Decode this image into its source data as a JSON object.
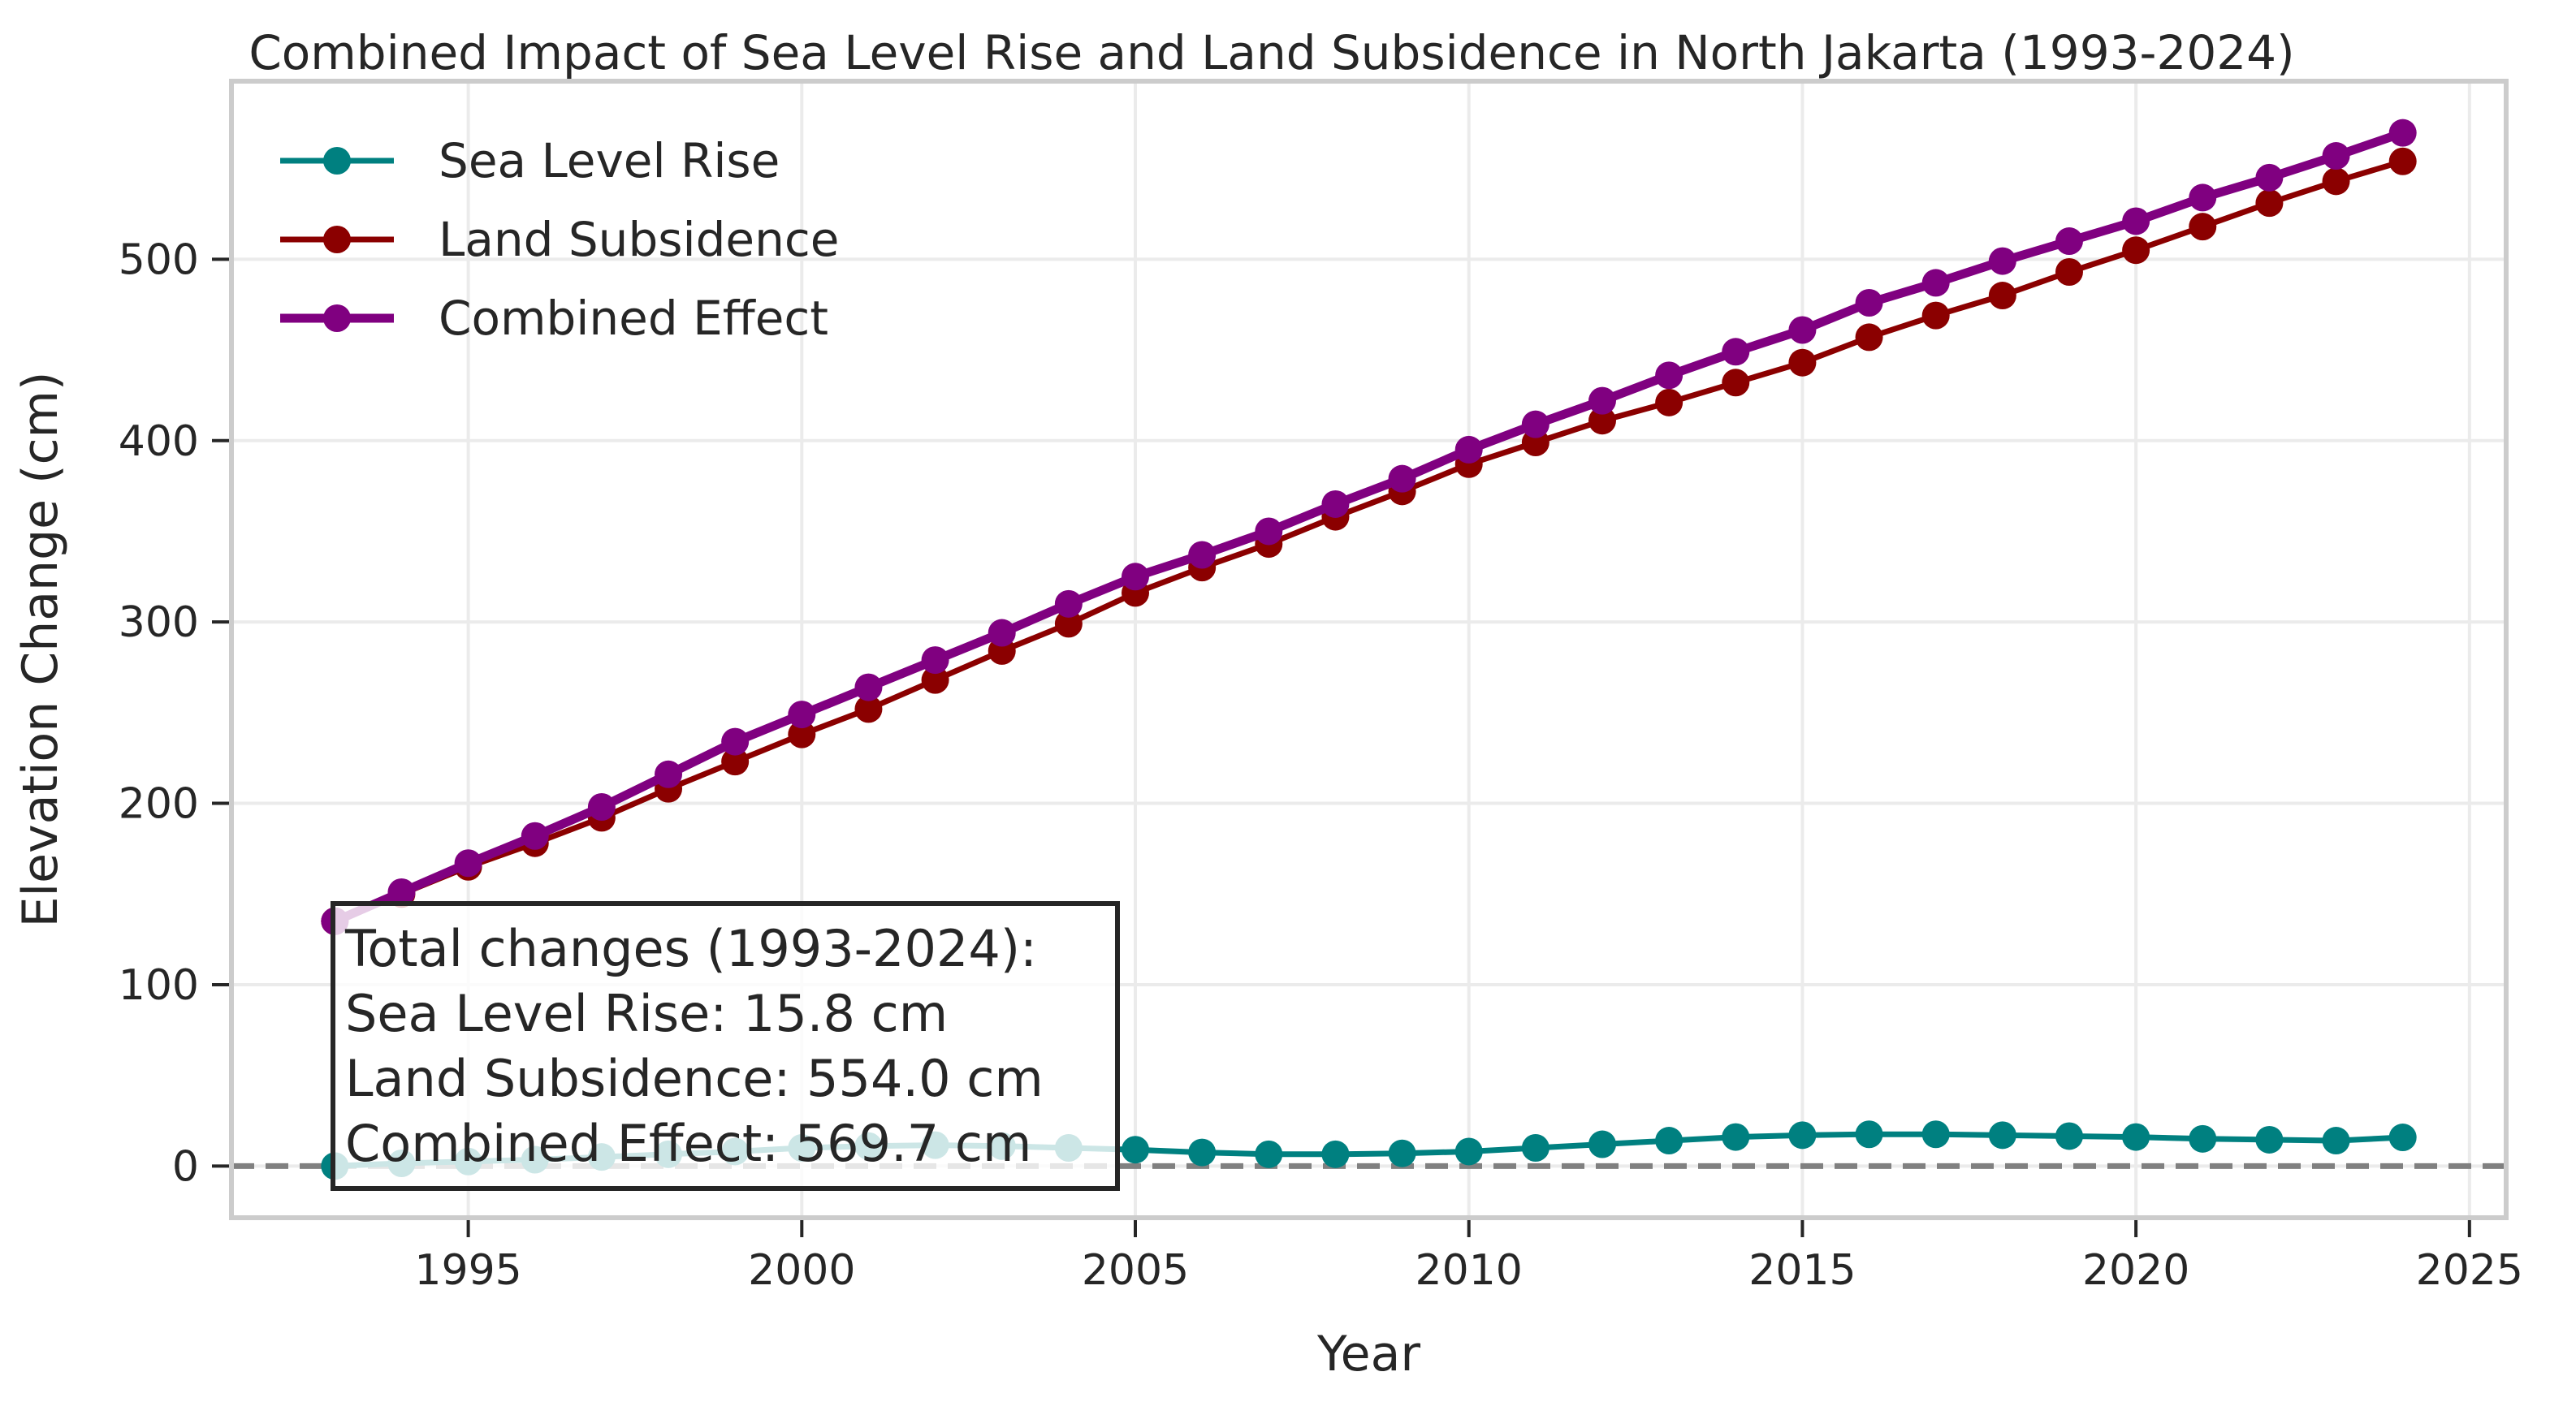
{
  "chart_data": {
    "type": "line",
    "title": "Combined Impact of Sea Level Rise and Land Subsidence in North Jakarta (1993-2024)",
    "xlabel": "Year",
    "ylabel": "Elevation Change (cm)",
    "xlim": [
      1991.45,
      2025.55
    ],
    "ylim": [
      -28.5,
      598.2
    ],
    "xticks": [
      1995,
      2000,
      2005,
      2010,
      2015,
      2020,
      2025
    ],
    "yticks": [
      0,
      100,
      200,
      300,
      400,
      500
    ],
    "grid": true,
    "legend_position": "upper-left",
    "reference_line": {
      "y": 0,
      "style": "dashed",
      "color": "#808080"
    },
    "x": [
      1993,
      1994,
      1995,
      1996,
      1997,
      1998,
      1999,
      2000,
      2001,
      2002,
      2003,
      2004,
      2005,
      2006,
      2007,
      2008,
      2009,
      2010,
      2011,
      2012,
      2013,
      2014,
      2015,
      2016,
      2017,
      2018,
      2019,
      2020,
      2021,
      2022,
      2023,
      2024
    ],
    "series": [
      {
        "name": "Sea Level Rise",
        "color": "#008080",
        "values": [
          0,
          1.5,
          2.5,
          3.5,
          5,
          6.5,
          8,
          10,
          11,
          11.5,
          11,
          10,
          9,
          7.5,
          6.5,
          6.5,
          7,
          8,
          10,
          12,
          14,
          16,
          17,
          17.5,
          17.5,
          17,
          16.5,
          16,
          15,
          14.5,
          14,
          15.8
        ]
      },
      {
        "name": "Land Subsidence",
        "color": "#8b0000",
        "values": [
          135,
          150,
          165,
          178,
          192,
          208,
          223,
          238,
          252,
          268,
          284,
          299,
          316,
          330,
          343,
          358,
          372,
          387,
          399,
          411,
          421,
          432,
          443,
          457,
          469,
          480,
          493,
          505,
          518,
          531,
          543,
          554.0
        ]
      },
      {
        "name": "Combined Effect",
        "color": "#800080",
        "values": [
          135,
          151,
          167,
          182,
          198,
          216,
          234,
          249,
          264,
          279,
          294,
          310,
          325,
          337,
          350,
          365,
          379,
          395,
          409,
          422,
          436,
          449,
          461,
          476,
          487,
          499,
          510,
          521,
          534,
          545,
          557,
          569.7
        ]
      }
    ],
    "annotation": {
      "lines": [
        "Total changes (1993-2024):",
        "Sea Level Rise: 15.8 cm",
        "Land Subsidence: 554.0 cm",
        "Combined Effect: 569.7 cm"
      ]
    }
  }
}
